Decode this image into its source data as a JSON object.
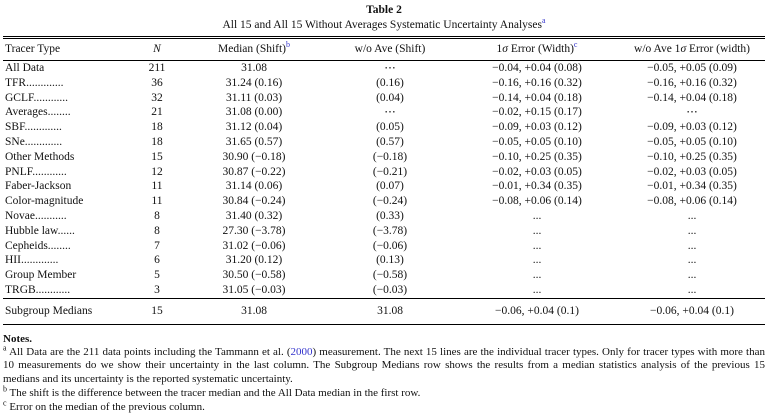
{
  "link_color": "#3333cc",
  "caption": {
    "number": "Table 2",
    "title": "All 15 and All 15 Without Averages Systematic Uncertainty Analyses",
    "note_mark": "a"
  },
  "table": {
    "columns": [
      {
        "label": "Tracer Type",
        "note": "",
        "align": "left",
        "italic": false
      },
      {
        "label": "N",
        "note": "",
        "align": "center",
        "italic": true
      },
      {
        "label": "Median (Shift)",
        "note": "b",
        "align": "center",
        "italic": false
      },
      {
        "label": "w/o Ave (Shift)",
        "note": "",
        "align": "center",
        "italic": false
      },
      {
        "label": "1σ Error (Width)",
        "note": "c",
        "align": "center",
        "italic": false
      },
      {
        "label": "w/o Ave 1σ Error (width)",
        "note": "",
        "align": "center",
        "italic": false
      }
    ],
    "rows": [
      [
        "All Data",
        "211",
        "31.08",
        "⋯",
        "−0.04, +0.04 (0.08)",
        "−0.05, +0.05 (0.09)"
      ],
      [
        "TFR.............",
        "36",
        "31.24 (0.16)",
        "(0.16)",
        "−0.16, +0.16 (0.32)",
        "−0.16, +0.16 (0.32)"
      ],
      [
        "GCLF............",
        "32",
        "31.11 (0.03)",
        "(0.04)",
        "−0.14, +0.04 (0.18)",
        "−0.14, +0.04 (0.18)"
      ],
      [
        "Averages........",
        "21",
        "31.08 (0.00)",
        "⋯",
        "−0.02, +0.15 (0.17)",
        "⋯"
      ],
      [
        "SBF.............",
        "18",
        "31.12 (0.04)",
        "(0.05)",
        "−0.09, +0.03 (0.12)",
        "−0.09, +0.03 (0.12)"
      ],
      [
        "SNe.............",
        "18",
        "31.65 (0.57)",
        "(0.57)",
        "−0.05, +0.05 (0.10)",
        "−0.05, +0.05 (0.10)"
      ],
      [
        "Other Methods",
        "15",
        "30.90 (−0.18)",
        "(−0.18)",
        "−0.10, +0.25 (0.35)",
        "−0.10, +0.25 (0.35)"
      ],
      [
        "PNLF............",
        "12",
        "30.87 (−0.22)",
        "(−0.21)",
        "−0.02, +0.03 (0.05)",
        "−0.02, +0.03 (0.05)"
      ],
      [
        "Faber-Jackson",
        "11",
        "31.14 (0.06)",
        "(0.07)",
        "−0.01, +0.34 (0.35)",
        "−0.01, +0.34 (0.35)"
      ],
      [
        "Color-magnitude",
        "11",
        "30.84 (−0.24)",
        "(−0.24)",
        "−0.08, +0.06 (0.14)",
        "−0.08, +0.06 (0.14)"
      ],
      [
        "Novae...........",
        "8",
        "31.40 (0.32)",
        "(0.33)",
        "...",
        "..."
      ],
      [
        "Hubble law......",
        "8",
        "27.30 (−3.78)",
        "(−3.78)",
        "...",
        "..."
      ],
      [
        "Cepheids........",
        "7",
        "31.02 (−0.06)",
        "(−0.06)",
        "...",
        "..."
      ],
      [
        "HII.............",
        "6",
        "31.20 (0.12)",
        "(0.13)",
        "...",
        "..."
      ],
      [
        "Group Member",
        "5",
        "30.50 (−0.58)",
        "(−0.58)",
        "...",
        "..."
      ],
      [
        "TRGB............",
        "3",
        "31.05 (−0.03)",
        "(−0.03)",
        "...",
        "..."
      ]
    ],
    "summary_row": [
      "Subgroup Medians",
      "15",
      "31.08",
      "31.08",
      "−0.06, +0.04 (0.1)",
      "−0.06, +0.04 (0.1)"
    ]
  },
  "notes": {
    "heading": "Notes.",
    "items": [
      {
        "mark": "a",
        "text_before_link": "All Data are the 211 data points including the Tammann et al. (",
        "link_text": "2000",
        "text_after_link": ") measurement. The next 15 lines are the individual tracer types. Only for tracer types with more than 10 measurements do we show their uncertainty in the last column. The Subgroup Medians row shows the results from a median statistics analysis of the previous 15 medians and its uncertainty is the reported systematic uncertainty."
      },
      {
        "mark": "b",
        "text_before_link": "The shift is the difference between the tracer median and the All Data median in the first row.",
        "link_text": "",
        "text_after_link": ""
      },
      {
        "mark": "c",
        "text_before_link": "Error on the median of the previous column.",
        "link_text": "",
        "text_after_link": ""
      }
    ]
  }
}
